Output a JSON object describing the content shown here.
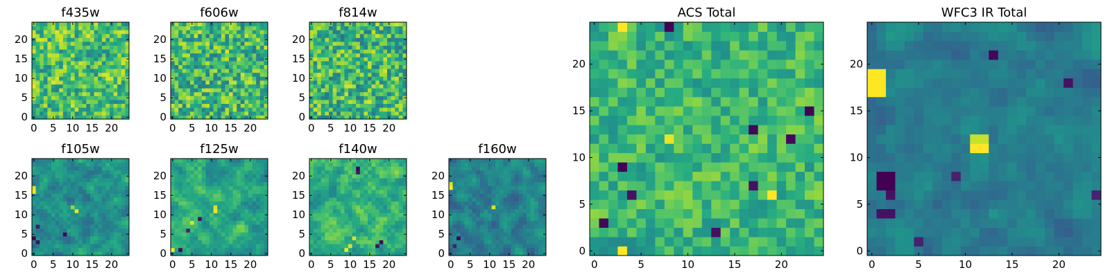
{
  "figure": {
    "background": "#ffffff",
    "colormap": "viridis",
    "colors": {
      "low": "#440154",
      "mid": "#21918c",
      "high": "#fde725",
      "axis": "#000000"
    }
  },
  "chart_data": [
    {
      "id": "f435w",
      "type": "heatmap",
      "title": "f435w",
      "grid_size": 25,
      "extent": [
        -0.5,
        24.5
      ],
      "xticks": [
        0,
        5,
        10,
        15,
        20
      ],
      "yticks": [
        0,
        5,
        10,
        15,
        20
      ],
      "xlabel": "",
      "ylabel": "",
      "base_level": 0.7,
      "spread": 0.28,
      "correlation": 0.15,
      "seed": 11
    },
    {
      "id": "f606w",
      "type": "heatmap",
      "title": "f606w",
      "grid_size": 25,
      "extent": [
        -0.5,
        24.5
      ],
      "xticks": [
        0,
        5,
        10,
        15,
        20
      ],
      "yticks": [
        0,
        5,
        10,
        15,
        20
      ],
      "xlabel": "",
      "ylabel": "",
      "base_level": 0.68,
      "spread": 0.3,
      "correlation": 0.12,
      "seed": 23
    },
    {
      "id": "f814w",
      "type": "heatmap",
      "title": "f814w",
      "grid_size": 25,
      "extent": [
        -0.5,
        24.5
      ],
      "xticks": [
        0,
        5,
        10,
        15,
        20
      ],
      "yticks": [
        0,
        5,
        10,
        15,
        20
      ],
      "xlabel": "",
      "ylabel": "",
      "base_level": 0.67,
      "spread": 0.3,
      "correlation": 0.12,
      "seed": 37
    },
    {
      "id": "f105w",
      "type": "heatmap",
      "title": "f105w",
      "grid_size": 25,
      "extent": [
        -0.5,
        24.5
      ],
      "xticks": [
        0,
        5,
        10,
        15,
        20
      ],
      "yticks": [
        0,
        5,
        10,
        15,
        20
      ],
      "xlabel": "",
      "ylabel": "",
      "base_level": 0.5,
      "spread": 0.22,
      "correlation": 0.55,
      "seed": 41,
      "hotspots": [
        {
          "col": 0,
          "row": 16,
          "value": 1.0
        },
        {
          "col": 0,
          "row": 17,
          "value": 0.95
        },
        {
          "col": 11,
          "row": 11,
          "value": 0.97
        },
        {
          "col": 10,
          "row": 12,
          "value": 0.85
        }
      ],
      "coldspots": [
        {
          "col": 0,
          "row": 4,
          "value": 0.0
        },
        {
          "col": 1,
          "row": 3,
          "value": 0.05
        },
        {
          "col": 8,
          "row": 5,
          "value": 0.02
        },
        {
          "col": 1,
          "row": 7,
          "value": 0.08
        }
      ]
    },
    {
      "id": "f125w",
      "type": "heatmap",
      "title": "f125w",
      "grid_size": 25,
      "extent": [
        -0.5,
        24.5
      ],
      "xticks": [
        0,
        5,
        10,
        15,
        20
      ],
      "yticks": [
        0,
        5,
        10,
        15,
        20
      ],
      "xlabel": "",
      "ylabel": "",
      "base_level": 0.6,
      "spread": 0.22,
      "correlation": 0.55,
      "seed": 53,
      "hotspots": [
        {
          "col": 0,
          "row": 1,
          "value": 1.0
        },
        {
          "col": 11,
          "row": 11,
          "value": 0.98
        },
        {
          "col": 11,
          "row": 12,
          "value": 0.95
        },
        {
          "col": 5,
          "row": 8,
          "value": 0.95
        }
      ],
      "coldspots": [
        {
          "col": 2,
          "row": 1,
          "value": 0.02
        },
        {
          "col": 7,
          "row": 9,
          "value": 0.05
        },
        {
          "col": 4,
          "row": 6,
          "value": 0.1
        }
      ]
    },
    {
      "id": "f140w",
      "type": "heatmap",
      "title": "f140w",
      "grid_size": 25,
      "extent": [
        -0.5,
        24.5
      ],
      "xticks": [
        0,
        5,
        10,
        15,
        20
      ],
      "yticks": [
        0,
        5,
        10,
        15,
        20
      ],
      "xlabel": "",
      "ylabel": "",
      "base_level": 0.65,
      "spread": 0.24,
      "correlation": 0.55,
      "seed": 67,
      "hotspots": [
        {
          "col": 9,
          "row": 1,
          "value": 0.98
        },
        {
          "col": 10,
          "row": 2,
          "value": 0.95
        },
        {
          "col": 11,
          "row": 4,
          "value": 0.95
        }
      ],
      "coldspots": [
        {
          "col": 12,
          "row": 22,
          "value": 0.0
        },
        {
          "col": 12,
          "row": 21,
          "value": 0.05
        },
        {
          "col": 18,
          "row": 3,
          "value": 0.02
        },
        {
          "col": 17,
          "row": 2,
          "value": 0.05
        }
      ]
    },
    {
      "id": "f160w",
      "type": "heatmap",
      "title": "f160w",
      "grid_size": 25,
      "extent": [
        -0.5,
        24.5
      ],
      "xticks": [
        0,
        5,
        10,
        15,
        20
      ],
      "yticks": [
        0,
        5,
        10,
        15,
        20
      ],
      "xlabel": "",
      "ylabel": "",
      "base_level": 0.45,
      "spread": 0.2,
      "correlation": 0.6,
      "seed": 79,
      "hotspots": [
        {
          "col": 0,
          "row": 17,
          "value": 1.0
        },
        {
          "col": 0,
          "row": 18,
          "value": 0.95
        },
        {
          "col": 11,
          "row": 12,
          "value": 0.95
        }
      ],
      "coldspots": [
        {
          "col": 2,
          "row": 4,
          "value": 0.0
        },
        {
          "col": 1,
          "row": 2,
          "value": 0.1
        }
      ]
    },
    {
      "id": "acs-total",
      "type": "heatmap",
      "title": "ACS Total",
      "grid_size": 25,
      "extent": [
        -0.5,
        24.5
      ],
      "xticks": [
        0,
        5,
        10,
        15,
        20
      ],
      "yticks": [
        0,
        5,
        10,
        15,
        20
      ],
      "xlabel": "",
      "ylabel": "",
      "base_level": 0.66,
      "spread": 0.2,
      "correlation": 0.2,
      "seed": 97,
      "hotspots": [
        {
          "col": 3,
          "row": 24,
          "value": 1.0
        },
        {
          "col": 3,
          "row": 0,
          "value": 1.0
        },
        {
          "col": 19,
          "row": 6,
          "value": 1.0
        },
        {
          "col": 8,
          "row": 12,
          "value": 0.97
        }
      ],
      "coldspots": [
        {
          "col": 8,
          "row": 24,
          "value": 0.0
        },
        {
          "col": 3,
          "row": 9,
          "value": 0.0
        },
        {
          "col": 1,
          "row": 3,
          "value": 0.02
        },
        {
          "col": 23,
          "row": 15,
          "value": 0.0
        },
        {
          "col": 17,
          "row": 13,
          "value": 0.02
        },
        {
          "col": 21,
          "row": 12,
          "value": 0.02
        },
        {
          "col": 4,
          "row": 6,
          "value": 0.05
        },
        {
          "col": 17,
          "row": 7,
          "value": 0.05
        },
        {
          "col": 13,
          "row": 2,
          "value": 0.05
        }
      ]
    },
    {
      "id": "wfc3-ir-total",
      "type": "heatmap",
      "title": "WFC3 IR Total",
      "grid_size": 25,
      "extent": [
        -0.5,
        24.5
      ],
      "xticks": [
        0,
        5,
        10,
        15,
        20
      ],
      "yticks": [
        0,
        5,
        10,
        15,
        20
      ],
      "xlabel": "",
      "ylabel": "",
      "base_level": 0.42,
      "spread": 0.14,
      "correlation": 0.6,
      "seed": 113,
      "hotspots": [
        {
          "col": 0,
          "row": 17,
          "value": 1.0
        },
        {
          "col": 0,
          "row": 18,
          "value": 1.0
        },
        {
          "col": 0,
          "row": 19,
          "value": 1.0
        },
        {
          "col": 1,
          "row": 17,
          "value": 1.0
        },
        {
          "col": 1,
          "row": 18,
          "value": 1.0
        },
        {
          "col": 1,
          "row": 19,
          "value": 1.0
        },
        {
          "col": 11,
          "row": 11,
          "value": 1.0
        },
        {
          "col": 12,
          "row": 11,
          "value": 1.0
        },
        {
          "col": 11,
          "row": 12,
          "value": 0.92
        },
        {
          "col": 12,
          "row": 12,
          "value": 0.92
        }
      ],
      "coldspots": [
        {
          "col": 1,
          "row": 7,
          "value": 0.0
        },
        {
          "col": 1,
          "row": 8,
          "value": 0.0
        },
        {
          "col": 2,
          "row": 7,
          "value": 0.0
        },
        {
          "col": 2,
          "row": 8,
          "value": 0.0
        },
        {
          "col": 2,
          "row": 6,
          "value": 0.05
        },
        {
          "col": 1,
          "row": 4,
          "value": 0.05
        },
        {
          "col": 2,
          "row": 4,
          "value": 0.05
        },
        {
          "col": 13,
          "row": 21,
          "value": 0.02
        },
        {
          "col": 21,
          "row": 18,
          "value": 0.05
        },
        {
          "col": 9,
          "row": 8,
          "value": 0.1
        },
        {
          "col": 5,
          "row": 1,
          "value": 0.1
        },
        {
          "col": 24,
          "row": 6,
          "value": 0.1
        }
      ]
    }
  ]
}
